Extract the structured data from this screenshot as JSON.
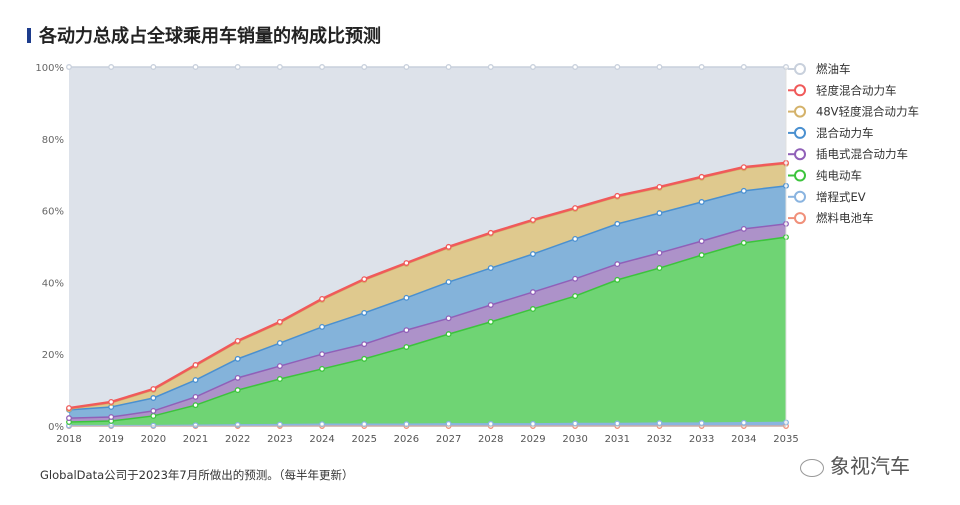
{
  "title": "各动力总成占全球乘用车销量的构成比预测",
  "footer": "GlobalData公司于2023年7月所做出的预测。（每半年更新）",
  "watermark": "象视汽车",
  "chart_data": {
    "type": "area",
    "stacked": true,
    "title": "各动力总成占全球乘用车销量的构成比预测",
    "categories": [
      "2018",
      "2019",
      "2020",
      "2021",
      "2022",
      "2023",
      "2024",
      "2025",
      "2026",
      "2027",
      "2028",
      "2029",
      "2030",
      "2031",
      "2032",
      "2033",
      "2034",
      "2035"
    ],
    "ylim": [
      0,
      100
    ],
    "yticks": [
      "0%",
      "20%",
      "40%",
      "60%",
      "80%",
      "100%"
    ],
    "grid": true,
    "legend_position": "right",
    "series": [
      {
        "name": "燃料电池车",
        "color": "#f0907a",
        "values": [
          0,
          0,
          0,
          0,
          0,
          0,
          0,
          0,
          0,
          0,
          0,
          0,
          0,
          0,
          0,
          0,
          0,
          0
        ]
      },
      {
        "name": "增程式EV",
        "color": "#8ab4e0",
        "values": [
          0.1,
          0.1,
          0.1,
          0.2,
          0.3,
          0.4,
          0.5,
          0.5,
          0.5,
          0.6,
          0.6,
          0.6,
          0.7,
          0.7,
          0.8,
          0.8,
          0.9,
          1.0
        ]
      },
      {
        "name": "纯电动车",
        "color": "#3cc43c",
        "values": [
          1.0,
          1.3,
          2.7,
          5.6,
          9.7,
          12.7,
          15.4,
          18.2,
          21.5,
          25.0,
          28.4,
          32.0,
          35.5,
          40.0,
          43.2,
          46.8,
          50.1,
          51.6
        ]
      },
      {
        "name": "插电式混合动力车",
        "color": "#9060b8",
        "values": [
          1.1,
          1.1,
          1.4,
          2.3,
          3.4,
          3.6,
          4.1,
          4.1,
          4.7,
          4.4,
          4.7,
          4.7,
          4.8,
          4.4,
          4.2,
          3.9,
          3.9,
          3.7
        ]
      },
      {
        "name": "混合动力车",
        "color": "#4a90d0",
        "values": [
          2.3,
          2.8,
          3.6,
          4.7,
          5.3,
          6.4,
          7.6,
          8.7,
          9.0,
          10.1,
          10.3,
          10.6,
          11.1,
          11.2,
          11.1,
          10.9,
          10.6,
          10.6
        ]
      },
      {
        "name": "48V轻度混合动力车",
        "color": "#d4b26a",
        "values": [
          0.2,
          1.1,
          2.2,
          3.9,
          4.7,
          5.6,
          7.5,
          9.1,
          9.4,
          9.5,
          9.5,
          9.2,
          8.3,
          7.5,
          7.0,
          6.7,
          6.3,
          6.1
        ]
      },
      {
        "name": "轻度混合动力车",
        "color": "#f05a5a",
        "values": [
          0.3,
          0.3,
          0.3,
          0.3,
          0.3,
          0.3,
          0.3,
          0.3,
          0.3,
          0.3,
          0.3,
          0.3,
          0.3,
          0.3,
          0.3,
          0.3,
          0.3,
          0.3
        ]
      },
      {
        "name": "燃油车",
        "color": "#c8d0dc",
        "values": [
          95.0,
          93.3,
          89.7,
          83.0,
          76.3,
          71.0,
          64.6,
          59.1,
          54.6,
          50.1,
          46.2,
          42.6,
          39.3,
          35.9,
          33.4,
          30.6,
          27.9,
          26.7
        ]
      }
    ],
    "legend_order": [
      "燃油车",
      "轻度混合动力车",
      "48V轻度混合动力车",
      "混合动力车",
      "插电式混合动力车",
      "纯电动车",
      "增程式EV",
      "燃料电池车"
    ]
  }
}
